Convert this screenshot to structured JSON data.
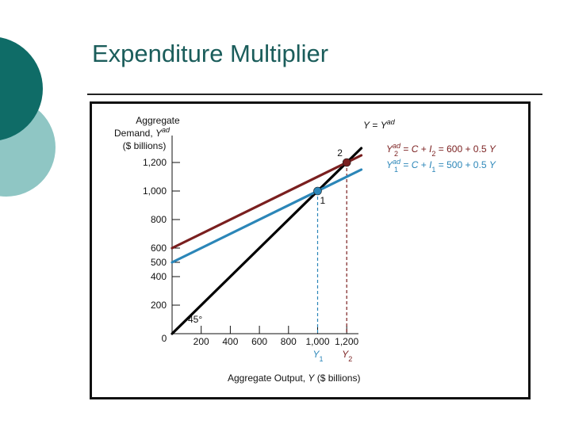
{
  "slide": {
    "title": "Expenditure Multiplier"
  },
  "colors": {
    "teal_dark": "#0f6c67",
    "teal_light": "#8fc6c4",
    "title": "#1b5d5b",
    "line45": "#000000",
    "line2": "#7a1f1f",
    "line1": "#2b86b8"
  },
  "chart_data": {
    "type": "line",
    "title": "",
    "xlabel": "Aggregate Output, Y ($ billions)",
    "ylabel": "Aggregate Demand, Y^ad ($ billions)",
    "xlim": [
      0,
      1300
    ],
    "ylim": [
      0,
      1300
    ],
    "x_ticks": [
      {
        "value": 200,
        "label": "200"
      },
      {
        "value": 400,
        "label": "400"
      },
      {
        "value": 600,
        "label": "600"
      },
      {
        "value": 800,
        "label": "800"
      },
      {
        "value": 1000,
        "label": "1,000"
      },
      {
        "value": 1200,
        "label": "1,200"
      }
    ],
    "y_ticks": [
      {
        "value": 200,
        "label": "200"
      },
      {
        "value": 400,
        "label": "400"
      },
      {
        "value": 500,
        "label": "500"
      },
      {
        "value": 600,
        "label": "600"
      },
      {
        "value": 800,
        "label": "800"
      },
      {
        "value": 1000,
        "label": "1,000"
      },
      {
        "value": 1200,
        "label": "1,200"
      }
    ],
    "origin_label": "0",
    "angle_label": "45°",
    "series": [
      {
        "name": "Y = Y^ad",
        "color": "#000000",
        "points": [
          [
            0,
            0
          ],
          [
            1300,
            1300
          ]
        ]
      },
      {
        "name": "Y2^ad = C + I2 = 600 + 0.5 Y",
        "color": "#7a1f1f",
        "points": [
          [
            0,
            600
          ],
          [
            1300,
            1250
          ]
        ]
      },
      {
        "name": "Y1^ad = C + I1 = 500 + 0.5 Y",
        "color": "#2b86b8",
        "points": [
          [
            0,
            500
          ],
          [
            1300,
            1150
          ]
        ]
      }
    ],
    "equilibria": [
      {
        "label": "1",
        "x": 1000,
        "y": 1000,
        "color": "#2b86b8",
        "axis_label": "Y1"
      },
      {
        "label": "2",
        "x": 1200,
        "y": 1200,
        "color": "#7a1f1f",
        "axis_label": "Y2"
      }
    ]
  }
}
